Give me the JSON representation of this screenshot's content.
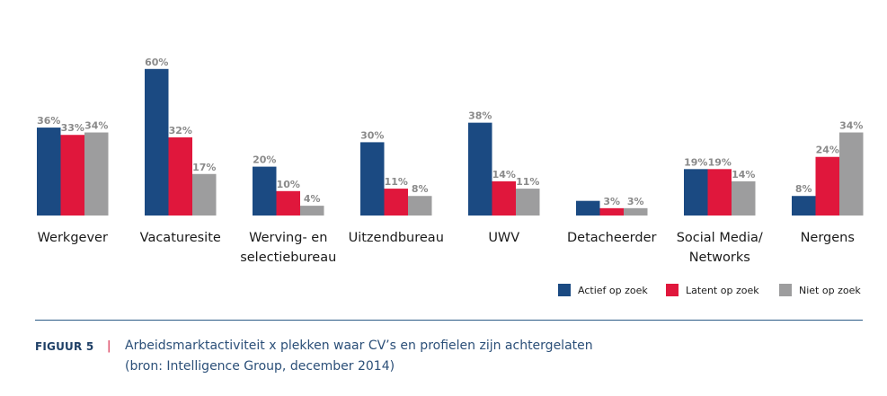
{
  "chart_data": {
    "type": "bar",
    "categories": [
      [
        "Werkgever"
      ],
      [
        "Vacaturesite"
      ],
      [
        "Werving- en",
        "selectiebureau"
      ],
      [
        "Uitzendbureau"
      ],
      [
        "UWV"
      ],
      [
        "Detacheerder"
      ],
      [
        "Social Media/",
        "Networks"
      ],
      [
        "Nergens"
      ]
    ],
    "series": [
      {
        "name": "Actief op zoek",
        "color": "#1b4a82",
        "values": [
          36,
          60,
          20,
          30,
          38,
          6,
          19,
          8
        ],
        "labels": [
          "36%",
          "60%",
          "20%",
          "30%",
          "38%",
          "",
          "19%",
          "8%"
        ]
      },
      {
        "name": "Latent op zoek",
        "color": "#e0173c",
        "values": [
          33,
          32,
          10,
          11,
          14,
          3,
          19,
          24
        ],
        "labels": [
          "33%",
          "32%",
          "10%",
          "11%",
          "14%",
          "3%",
          "19%",
          "24%"
        ]
      },
      {
        "name": "Niet op zoek",
        "color": "#9d9d9e",
        "values": [
          34,
          17,
          4,
          8,
          11,
          3,
          14,
          34
        ],
        "labels": [
          "34%",
          "17%",
          "4%",
          "8%",
          "11%",
          "3%",
          "14%",
          "34%"
        ]
      }
    ],
    "ylim": [
      0,
      60
    ],
    "grid": false,
    "legend_position": "bottom-right"
  },
  "caption": {
    "figure_label": "FIGUUR 5",
    "separator": "|",
    "title": "Arbeidsmarktactiviteit x plekken waar CV’s en profielen zijn achtergelaten",
    "source": "(bron: Intelligence Group, december 2014)"
  }
}
